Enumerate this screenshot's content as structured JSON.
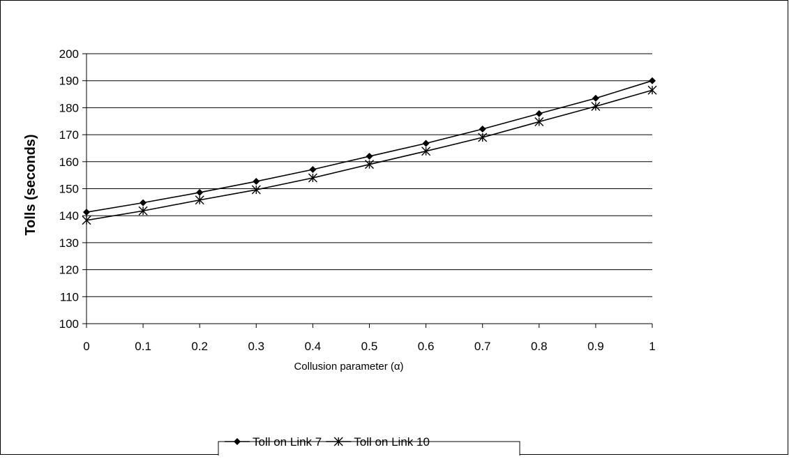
{
  "chart_data": {
    "type": "line",
    "title": "",
    "xlabel": "Collusion parameter (α)",
    "ylabel": "Tolls (seconds)",
    "x": [
      0,
      0.1,
      0.2,
      0.3,
      0.4,
      0.5,
      0.6,
      0.7,
      0.8,
      0.9,
      1
    ],
    "x_tick_labels": [
      "0",
      "0.1",
      "0.2",
      "0.3",
      "0.4",
      "0.5",
      "0.6",
      "0.7",
      "0.8",
      "0.9",
      "1"
    ],
    "y_tick_labels": [
      "100",
      "110",
      "120",
      "130",
      "140",
      "150",
      "160",
      "170",
      "180",
      "190",
      "200"
    ],
    "xlim": [
      0,
      1
    ],
    "ylim": [
      100,
      200
    ],
    "grid": "horizontal",
    "legend_position": "bottom",
    "series": [
      {
        "name": "Toll on Link 7",
        "marker": "diamond",
        "color": "#000000",
        "values": [
          141.3,
          144.8,
          148.6,
          152.7,
          157.1,
          162.0,
          166.8,
          172.1,
          177.8,
          183.5,
          190.0
        ]
      },
      {
        "name": "Toll on Link 10",
        "marker": "star",
        "color": "#000000",
        "values": [
          138.3,
          141.8,
          145.8,
          149.6,
          154.0,
          159.0,
          163.9,
          169.0,
          174.8,
          180.5,
          186.5
        ]
      }
    ]
  }
}
